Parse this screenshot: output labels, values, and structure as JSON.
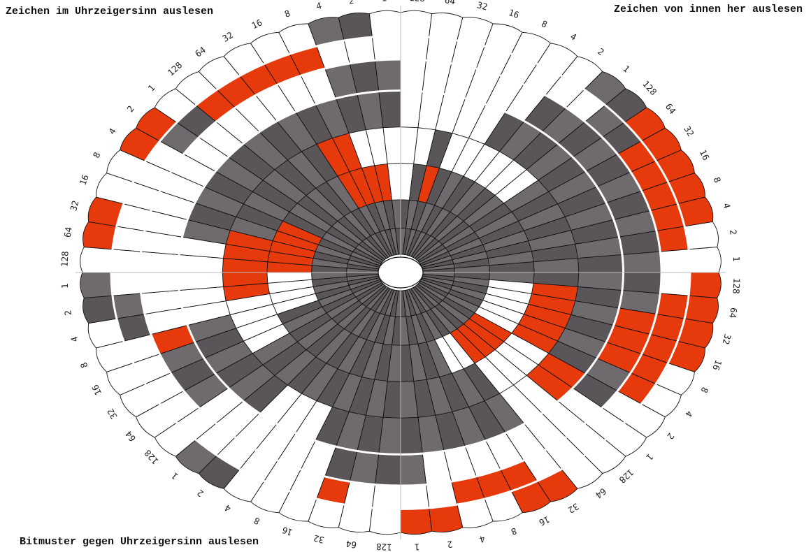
{
  "notes": {
    "top_left": "Zeichen im Uhrzeigersinn auslesen",
    "top_right": "Zeichen von innen her auslesen",
    "bottom_left": "Bitmuster gegen Uhrzeigersinn auslesen"
  },
  "bit_labels": [
    "128",
    "64",
    "32",
    "16",
    "8",
    "4",
    "2",
    "1"
  ],
  "colors": {
    "white": "#ffffff",
    "red": "#e63a0c",
    "dark": "#5a5558",
    "mid": "#6e6a6d",
    "outline": "#111111",
    "axis": "#bbbbbb"
  },
  "wheel": {
    "sectors": 64,
    "rings": [
      "A",
      "B",
      "C",
      "D",
      "E",
      "F",
      "G",
      "H"
    ],
    "ring_bits": {
      "H": "WWWWWWWDDRRRRRWWRRRRWWWWWWRRWWRRWWWWWWDDWWWWWWDDWRRWWRRWWWWWWDDW",
      "G": "WWWWWWWWDDRRRRRWWRRRRRWWWWWRRRWWWWRWWWWWWWWWWDDWWWWWWWDDRRRRRWWW",
      "F": "WWWWWWDDDDDDDDDDDDRRRDDWWWWWWWWDDDDWWWWWWDDDRWWWWWWWWWWWWWWWWDDDW",
      "E": "WWWWWDDDDDDDDDDDDDDDDDRRWWDDDDDDDDDDWWWDDDDDDWWWWWDDDDDDDDDDDDDDD",
      "D": "WWDWWWWWWDDDDDDDDRRRRRWWWWDDDDDDDDDDDDDDDDWWWWRRRRRDDDDDDDDRRWWWW",
      "C": "WDRDDDDDDDDDDDDDDWWWWWRRRRWWDDDDDDDDDDDDDDDDWWWWRRRRRDDDDDDRRRRWWW",
      "B": "DDDDDDDDDDDDDDDDDDDDDDDDDDDDDDDDDDDDDDDDDDDDDDDDDDDDDDDDDDDDDDDDD",
      "A": "DDDDDDDDDDDDDDDDDDDDDDDDDDDDDDDDDDDDDDDDDDDDDDDDDDDDDDDDDDDDDDDDD"
    }
  }
}
